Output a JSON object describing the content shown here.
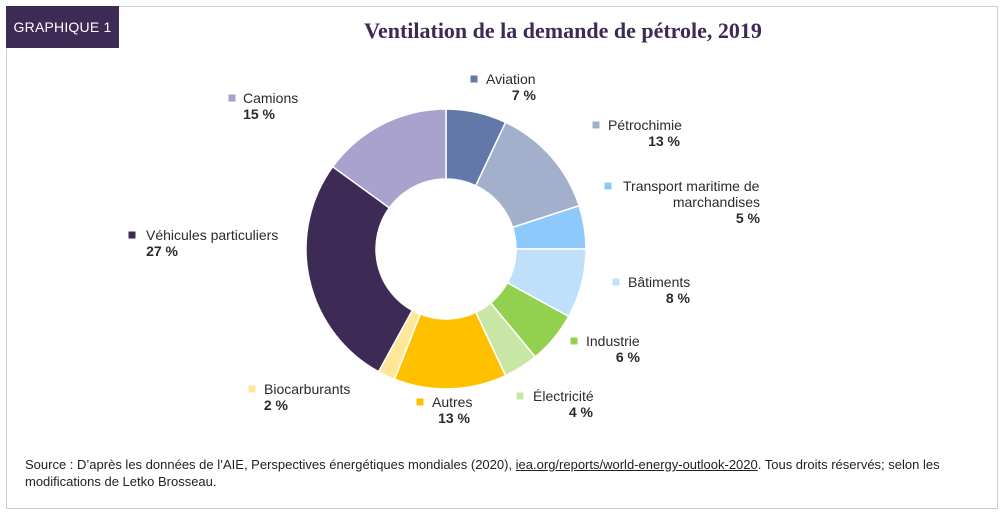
{
  "badge": "GRAPHIQUE 1",
  "source": {
    "prefix": "Source : D’après les données de l’AIE, Perspectives énergétiques mondiales (2020), ",
    "link": "iea.org/reports/world-energy-outlook-2020",
    "suffix": ". Tous droits réservés; selon les modifications de Letko Brosseau."
  },
  "chart_data": {
    "type": "pie",
    "donut": true,
    "title": "Ventilation de la demande de pétrole, 2019",
    "legend": "labels beside slices",
    "slices": [
      {
        "label": [
          "Aviation"
        ],
        "value_label": "7 %",
        "value": 7,
        "color": "#6278a8"
      },
      {
        "label": [
          "Pétrochimie"
        ],
        "value_label": "13 %",
        "value": 13,
        "color": "#a3b0cc"
      },
      {
        "label": [
          "Transport maritime de",
          "marchandises"
        ],
        "value_label": "5 %",
        "value": 5,
        "color": "#8ec9fb"
      },
      {
        "label": [
          "Bâtiments"
        ],
        "value_label": "8 %",
        "value": 8,
        "color": "#bfe0fb"
      },
      {
        "label": [
          "Industrie"
        ],
        "value_label": "6 %",
        "value": 6,
        "color": "#92d050"
      },
      {
        "label": [
          "Électricité"
        ],
        "value_label": "4 %",
        "value": 4,
        "color": "#c8e6a6"
      },
      {
        "label": [
          "Autres"
        ],
        "value_label": "13 %",
        "value": 13,
        "color": "#ffc000"
      },
      {
        "label": [
          "Biocarburants"
        ],
        "value_label": "2 %",
        "value": 2,
        "color": "#ffe699"
      },
      {
        "label": [
          "Véhicules particuliers"
        ],
        "value_label": "27 %",
        "value": 27,
        "color": "#3d2a55"
      },
      {
        "label": [
          "Camions"
        ],
        "value_label": "15 %",
        "value": 15,
        "color": "#a8a2cd"
      }
    ]
  }
}
